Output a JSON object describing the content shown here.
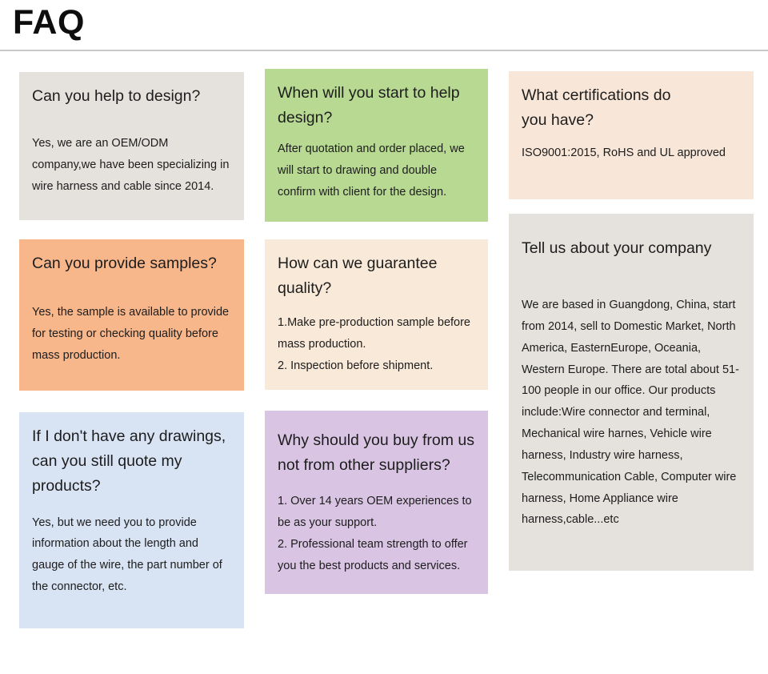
{
  "header": {
    "title": "FAQ"
  },
  "colors": {
    "page_bg": "#ffffff",
    "text": "#1d1d1d",
    "divider": "#c9c9c9"
  },
  "cards": [
    {
      "key": "help-design",
      "bg": "#e5e2de",
      "question": "Can you help to design?",
      "answers": [
        "Yes, we are an OEM/ODM company,we have been specializing in wire harness and cable since 2014."
      ]
    },
    {
      "key": "start-design",
      "bg": "#b7d992",
      "question": "When will you start to help design?",
      "answers": [
        "After quotation and order placed, we will start to drawing and double confirm with client for the design."
      ]
    },
    {
      "key": "certifications",
      "bg": "#f8e7d8",
      "question": "What certifications do you have?",
      "answers": [
        "ISO9001:2015, RoHS and UL approved"
      ]
    },
    {
      "key": "samples",
      "bg": "#f8b68b",
      "question": "Can you provide samples?",
      "answers": [
        "Yes, the sample is available to provide for testing or checking quality before mass production."
      ]
    },
    {
      "key": "quality",
      "bg": "#f8e9d9",
      "question": "How can we guarantee quality?",
      "answers": [
        "1.Make pre-production sample before mass production.",
        "2. Inspection before shipment."
      ]
    },
    {
      "key": "about-company",
      "bg": "#e5e2de",
      "question": "Tell us about your company",
      "answers": [
        "We are based in Guangdong, China, start from 2014, sell to Domestic Market, North America, EasternEurope, Oceania, Western Europe. There are total about 51-100 people in our office. Our products include:Wire connector and terminal, Mechanical wire harnes, Vehicle wire harness, Industry wire harness, Telecommunication Cable, Computer wire harness, Home Appliance wire harness,cable...etc"
      ]
    },
    {
      "key": "no-drawings",
      "bg": "#d8e3f4",
      "question": "If I don't have any drawings, can you still quote my products?",
      "answers": [
        "Yes, but we need you to provide information about the length and gauge of the wire, the part number of the connector, etc."
      ]
    },
    {
      "key": "why-us",
      "bg": "#d9c5e3",
      "question": "Why should you buy from us not from other suppliers?",
      "answers": [
        "1. Over 14 years OEM experiences to be as your support.",
        "2. Professional team strength to offer you the best products and services."
      ]
    }
  ]
}
